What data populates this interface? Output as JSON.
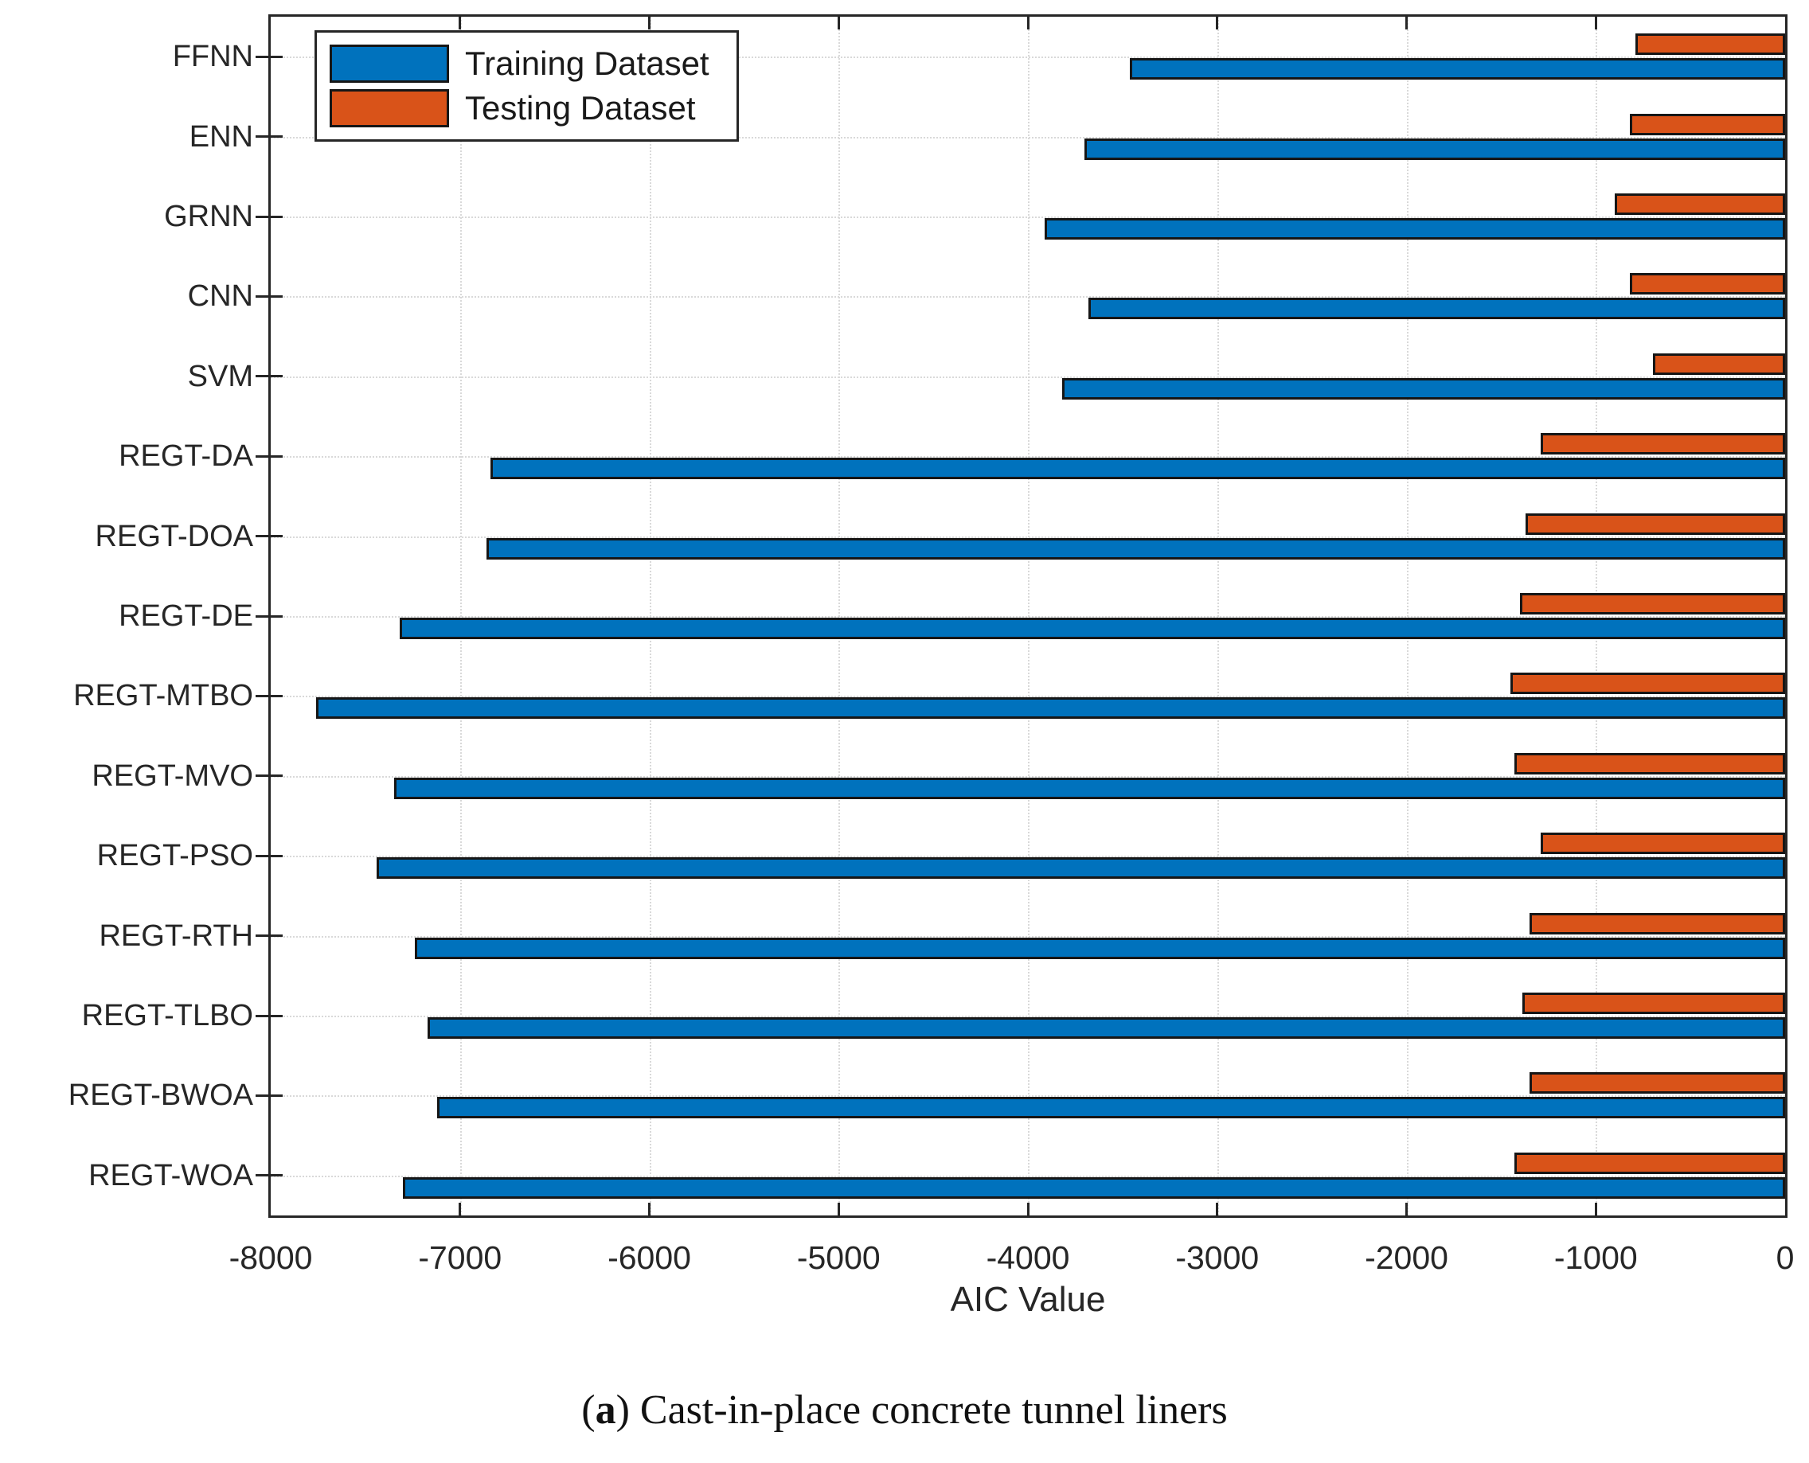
{
  "chart_data": {
    "type": "bar",
    "orientation": "horizontal",
    "title": "",
    "xlabel": "AIC Value",
    "xlim": [
      -8000,
      0
    ],
    "xticks": [
      -8000,
      -7000,
      -6000,
      -5000,
      -4000,
      -3000,
      -2000,
      -1000,
      0
    ],
    "xtick_labels": [
      "-8000",
      "-7000",
      "-6000",
      "-5000",
      "-4000",
      "-3000",
      "-2000",
      "-1000",
      "0"
    ],
    "grid": true,
    "legend_position": "top-left",
    "categories": [
      "FFNN",
      "ENN",
      "GRNN",
      "CNN",
      "SVM",
      "REGT-DA",
      "REGT-DOA",
      "REGT-DE",
      "REGT-MTBO",
      "REGT-MVO",
      "REGT-PSO",
      "REGT-RTH",
      "REGT-TLBO",
      "REGT-BWOA",
      "REGT-WOA"
    ],
    "series": [
      {
        "name": "Training Dataset",
        "color": "#0072BD",
        "values": [
          -3460,
          -3700,
          -3910,
          -3680,
          -3820,
          -6840,
          -6860,
          -7320,
          -7760,
          -7350,
          -7440,
          -7240,
          -7170,
          -7120,
          -7300
        ]
      },
      {
        "name": "Testing Dataset",
        "color": "#D95319",
        "values": [
          -790,
          -820,
          -900,
          -820,
          -700,
          -1290,
          -1370,
          -1400,
          -1450,
          -1430,
          -1290,
          -1350,
          -1390,
          -1350,
          -1430
        ]
      }
    ],
    "colors": {
      "axis": "#262626",
      "grid": "#d9d9d9",
      "bar_border": "#161616",
      "background": "#ffffff"
    },
    "caption": {
      "open": "(",
      "letter": "a",
      "close": ")",
      "text": "Cast-in-place concrete tunnel liners"
    }
  }
}
